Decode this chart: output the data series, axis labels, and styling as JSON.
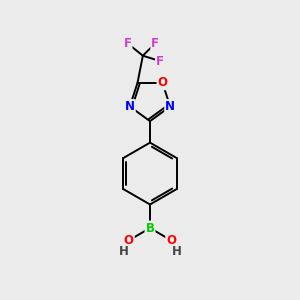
{
  "background_color": "#ebebeb",
  "bond_color": "#000000",
  "atom_colors": {
    "O": "#ff0000",
    "N": "#0000ff",
    "B": "#00cc00",
    "F": "#cc44cc",
    "C": "#000000",
    "H": "#444444"
  },
  "figsize": [
    3.0,
    3.0
  ],
  "dpi": 100,
  "lw": 1.4,
  "fsize": 8.5
}
